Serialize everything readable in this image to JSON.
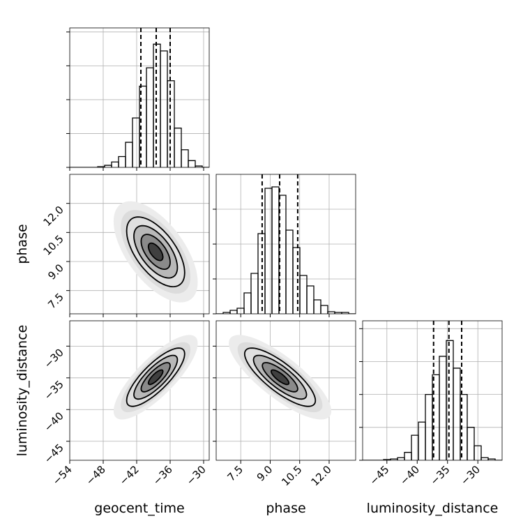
{
  "chart_data": [
    {
      "type": "histogram",
      "bins": [
        -54,
        -52.75,
        -51.5,
        -50.25,
        -49,
        -47.75,
        -46.5,
        -45.25,
        -44,
        -42.75,
        -41.5,
        -40.25,
        -39,
        -37.75,
        -36.5,
        -35.25,
        -34,
        -32.75,
        -31.5,
        -30.25,
        -29
      ],
      "counts": [
        0,
        0,
        0,
        0,
        1,
        3,
        8,
        16,
        37,
        73,
        120,
        147,
        182,
        172,
        128,
        58,
        26,
        10,
        2,
        0
      ],
      "color": "#000000",
      "xlim": [
        -54,
        -29
      ],
      "xticks": [
        -54,
        -48,
        -42,
        -36,
        -30
      ],
      "ylim": [
        0,
        206
      ],
      "yticks": [
        0,
        50,
        100,
        150,
        200
      ],
      "quantiles": [
        -41.25,
        -38.5,
        -36
      ],
      "grid": true
    },
    {
      "type": "density2d",
      "xlim": [
        -54,
        -29
      ],
      "xticks": [
        -54,
        -48,
        -42,
        -36,
        -30
      ],
      "ylim": [
        6.3,
        13.5
      ],
      "yticks": [
        {
          "value": 7.5,
          "label": "7.5"
        },
        {
          "value": 9.0,
          "label": "9.0"
        },
        {
          "value": 10.5,
          "label": "10.5"
        },
        {
          "value": 12.0,
          "label": "12.0"
        }
      ],
      "ylabel": "phase",
      "mean": [
        -38.6,
        9.5
      ],
      "sd": [
        2.6,
        0.9
      ],
      "corr": -0.6,
      "levels": [
        0.5,
        1,
        1.5,
        2
      ],
      "grid": true
    },
    {
      "type": "histogram",
      "bins": [
        6.25,
        6.605,
        6.96,
        7.315,
        7.67,
        8.025,
        8.38,
        8.735,
        9.09,
        9.445,
        9.8,
        10.155,
        10.51,
        10.865,
        11.22,
        11.575,
        11.93,
        12.285,
        12.64,
        12.995,
        13.35
      ],
      "counts": [
        0,
        2,
        5,
        8,
        30,
        58,
        115,
        180,
        182,
        170,
        120,
        95,
        55,
        40,
        20,
        12,
        3,
        2,
        2,
        0
      ],
      "color": "#000000",
      "xlim": [
        6.25,
        13.35
      ],
      "xticks": [
        7.5,
        9.0,
        10.5,
        12.0
      ],
      "ylim": [
        0,
        200
      ],
      "yticks": [
        0,
        50,
        100,
        150
      ],
      "quantiles": [
        8.59,
        9.48,
        10.4
      ],
      "grid": true
    },
    {
      "type": "density2d",
      "xlim": [
        -54,
        -29
      ],
      "xticks": [
        {
          "value": -54,
          "label": "−54"
        },
        {
          "value": -48,
          "label": "−48"
        },
        {
          "value": -42,
          "label": "−42"
        },
        {
          "value": -36,
          "label": "−36"
        },
        {
          "value": -30,
          "label": "−30"
        }
      ],
      "ylim": [
        -48,
        -26
      ],
      "yticks": [
        {
          "value": -30,
          "label": "−30"
        },
        {
          "value": -35,
          "label": "−35"
        },
        {
          "value": -40,
          "label": "−40"
        },
        {
          "value": -45,
          "label": "−45"
        }
      ],
      "xlabel": "geocent_time",
      "ylabel": "luminosity_distance",
      "mean": [
        -38.6,
        -34.9
      ],
      "sd": [
        2.6,
        2.3
      ],
      "corr": 0.8,
      "levels": [
        0.5,
        1,
        1.5,
        2
      ],
      "grid": true
    },
    {
      "type": "density2d",
      "xlim": [
        6.25,
        13.35
      ],
      "xticks": [
        {
          "value": 7.5,
          "label": "7.5"
        },
        {
          "value": 9.0,
          "label": "9.0"
        },
        {
          "value": 10.5,
          "label": "10.5"
        },
        {
          "value": 12.0,
          "label": "12.0"
        }
      ],
      "ylim": [
        -48,
        -26
      ],
      "yticks": [
        -30,
        -35,
        -40,
        -45
      ],
      "xlabel": "phase",
      "mean": [
        9.5,
        -34.9
      ],
      "sd": [
        0.9,
        2.3
      ],
      "corr": -0.8,
      "levels": [
        0.5,
        1,
        1.5,
        2
      ],
      "grid": true
    },
    {
      "type": "histogram",
      "bins": [
        -49,
        -47.85,
        -46.7,
        -45.55,
        -44.4,
        -43.25,
        -42.1,
        -40.95,
        -39.8,
        -38.65,
        -37.5,
        -36.35,
        -35.2,
        -34.05,
        -32.9,
        -31.75,
        -30.6,
        -29.45,
        -28.3,
        -27.15,
        -26
      ],
      "counts": [
        0,
        0,
        0,
        1,
        2,
        4,
        12,
        38,
        58,
        100,
        130,
        158,
        182,
        140,
        100,
        50,
        22,
        4,
        2,
        0
      ],
      "color": "#000000",
      "xlim": [
        -49,
        -26
      ],
      "xticks": [
        {
          "value": -45,
          "label": "−45"
        },
        {
          "value": -40,
          "label": "−40"
        },
        {
          "value": -35,
          "label": "−35"
        },
        {
          "value": -30,
          "label": "−30"
        }
      ],
      "ylim": [
        0,
        212
      ],
      "yticks": [
        0,
        50,
        100,
        150,
        200
      ],
      "xlabel": "luminosity_distance",
      "quantiles": [
        -37.3,
        -34.77,
        -32.67
      ],
      "grid": true
    }
  ]
}
